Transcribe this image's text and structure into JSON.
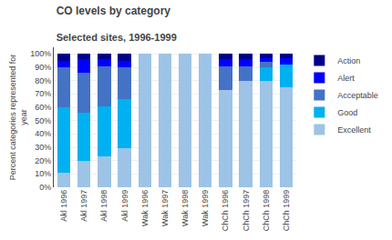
{
  "chart_data": {
    "type": "bar",
    "stacked": true,
    "title": "CO levels by category",
    "subtitle": "Selected sites, 1996-1999",
    "ylabel": "Percent categories represented for\nyear",
    "categories": [
      "Akl 1996",
      "Akl 1997",
      "Akl 1998",
      "Akl 1999",
      "Wak 1996",
      "Wak 1997",
      "Wak 1998",
      "Wak 1999",
      "ChCh 1996",
      "ChCh 1997",
      "ChCh 1998",
      "ChCh 1999"
    ],
    "series": [
      {
        "name": "Excellent",
        "color": "#9DC3E6",
        "values": [
          11,
          20,
          23,
          29,
          100,
          100,
          100,
          100,
          73,
          80,
          80,
          75
        ]
      },
      {
        "name": "Good",
        "color": "#00B0F0",
        "values": [
          49,
          36,
          38,
          37,
          0,
          0,
          0,
          0,
          0,
          0,
          10,
          17
        ]
      },
      {
        "name": "Acceptable",
        "color": "#4472C4",
        "values": [
          30,
          30,
          30,
          24,
          0,
          0,
          0,
          0,
          18,
          11,
          4,
          0
        ]
      },
      {
        "name": "Alert",
        "color": "#0000FF",
        "values": [
          5,
          10,
          5,
          5,
          0,
          0,
          0,
          0,
          5,
          5,
          3,
          5
        ]
      },
      {
        "name": "Action",
        "color": "#00008B",
        "values": [
          5,
          4,
          4,
          5,
          0,
          0,
          0,
          0,
          4,
          4,
          3,
          3
        ]
      }
    ],
    "ylim": [
      0,
      105
    ],
    "yticks": [
      {
        "value": 0,
        "label": "0%"
      },
      {
        "value": 10,
        "label": "10%"
      },
      {
        "value": 20,
        "label": "20%"
      },
      {
        "value": 30,
        "label": "30%"
      },
      {
        "value": 40,
        "label": "40%"
      },
      {
        "value": 50,
        "label": "50%"
      },
      {
        "value": 60,
        "label": "60%"
      },
      {
        "value": 70,
        "label": "70%"
      },
      {
        "value": 80,
        "label": "80%"
      },
      {
        "value": 90,
        "label": "90%"
      },
      {
        "value": 100,
        "label": "100%"
      }
    ],
    "grid": true,
    "legend": "right"
  }
}
